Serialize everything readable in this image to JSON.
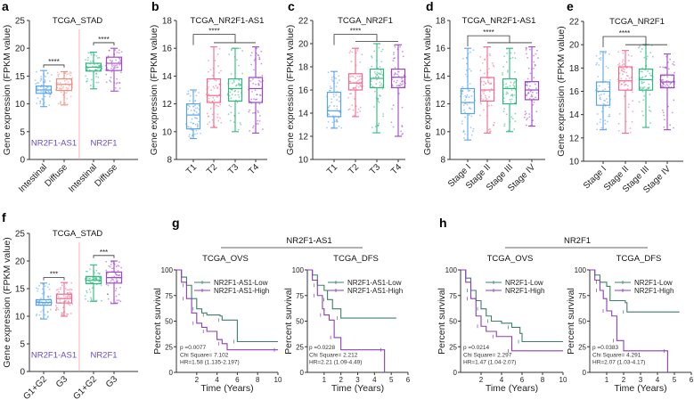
{
  "chart_data": [
    {
      "panel": "a",
      "type": "box",
      "title": "TCGA_STAD",
      "ylabel": "Gene expression (FPKM value)",
      "ylim": [
        0,
        25
      ],
      "yticks": [
        0,
        5,
        10,
        15,
        20,
        25
      ],
      "categories": [
        "Intestinal",
        "Diffuse",
        "Intestinal",
        "Diffuse"
      ],
      "group_labels": [
        "NR2F1-AS1",
        "NR2F1"
      ],
      "colors": [
        "#5aa4ea",
        "#f08c80",
        "#2eb87e",
        "#a048d0"
      ],
      "boxes": [
        {
          "min": 9.5,
          "q1": 11.9,
          "median": 12.5,
          "q3": 13.2,
          "max": 16.0
        },
        {
          "min": 9.8,
          "q1": 12.4,
          "median": 13.5,
          "q3": 14.5,
          "max": 15.8
        },
        {
          "min": 12.7,
          "q1": 15.9,
          "median": 16.6,
          "q3": 17.3,
          "max": 19.3
        },
        {
          "min": 12.3,
          "q1": 16.0,
          "median": 17.3,
          "q3": 18.4,
          "max": 20.0
        }
      ],
      "comparisons": [
        {
          "pair": [
            0,
            1
          ],
          "label": "****",
          "at": 17.0
        },
        {
          "pair": [
            2,
            3
          ],
          "label": "****",
          "at": 21.0
        }
      ]
    },
    {
      "panel": "b",
      "type": "box",
      "title": "TCGA_NR2F1-AS1",
      "ylabel": "Gene expression (FPKM value)",
      "ylim": [
        8,
        18
      ],
      "yticks": [
        8,
        10,
        12,
        14,
        16,
        18
      ],
      "categories": [
        "T1",
        "T2",
        "T3",
        "T4"
      ],
      "colors": [
        "#5aa4ea",
        "#ef6a8c",
        "#2eb87e",
        "#9a44c8"
      ],
      "boxes": [
        {
          "min": 9.5,
          "q1": 10.2,
          "median": 11.2,
          "q3": 12.0,
          "max": 13.0
        },
        {
          "min": 10.3,
          "q1": 12.1,
          "median": 12.6,
          "q3": 13.8,
          "max": 16.1
        },
        {
          "min": 10.0,
          "q1": 12.2,
          "median": 13.1,
          "q3": 13.8,
          "max": 16.0
        },
        {
          "min": 9.9,
          "q1": 12.1,
          "median": 13.1,
          "q3": 13.9,
          "max": 16.1
        }
      ],
      "group_comparison": {
        "label": "****",
        "at": 17.0,
        "sub_at": 16.4
      }
    },
    {
      "panel": "c",
      "type": "box",
      "title": "TCGA_NR2F1",
      "ylabel": "Gene expression (FPKM value)",
      "ylim": [
        10,
        22
      ],
      "yticks": [
        10,
        12,
        14,
        16,
        18,
        20,
        22
      ],
      "categories": [
        "T1",
        "T2",
        "T3",
        "T4"
      ],
      "colors": [
        "#5aa4ea",
        "#ef6a8c",
        "#2eb87e",
        "#9a44c8"
      ],
      "boxes": [
        {
          "min": 12.7,
          "q1": 13.7,
          "median": 14.2,
          "q3": 15.8,
          "max": 17.6
        },
        {
          "min": 13.7,
          "q1": 16.0,
          "median": 16.6,
          "q3": 17.4,
          "max": 19.6
        },
        {
          "min": 12.3,
          "q1": 16.2,
          "median": 17.0,
          "q3": 17.8,
          "max": 20.0
        },
        {
          "min": 12.0,
          "q1": 16.2,
          "median": 17.1,
          "q3": 17.8,
          "max": 19.9
        }
      ],
      "group_comparison": {
        "label": "****",
        "at": 20.8,
        "sub_at": 20.2
      }
    },
    {
      "panel": "d",
      "type": "box",
      "title": "TCGA_NR2F1-AS1",
      "ylabel": "Gene expression (FPKM value)",
      "ylim": [
        8,
        18
      ],
      "yticks": [
        8,
        10,
        12,
        14,
        16,
        18
      ],
      "categories": [
        "Stage I",
        "Stage II",
        "Stage III",
        "Stage IV"
      ],
      "colors": [
        "#5aa4ea",
        "#ef6a8c",
        "#2eb87e",
        "#9a44c8"
      ],
      "boxes": [
        {
          "min": 9.4,
          "q1": 11.3,
          "median": 12.1,
          "q3": 13.1,
          "max": 16.0
        },
        {
          "min": 9.9,
          "q1": 12.2,
          "median": 13.0,
          "q3": 13.9,
          "max": 16.1
        },
        {
          "min": 10.0,
          "q1": 12.0,
          "median": 13.1,
          "q3": 13.8,
          "max": 16.0
        },
        {
          "min": 10.4,
          "q1": 12.3,
          "median": 13.0,
          "q3": 13.6,
          "max": 16.1
        }
      ],
      "group_comparison": {
        "label": "****",
        "at": 16.9,
        "sub_at": 16.4
      }
    },
    {
      "panel": "e",
      "type": "box",
      "title": "TCGA_NR2F1",
      "ylabel": "Gene expression (FPKM value)",
      "ylim": [
        10,
        22
      ],
      "yticks": [
        10,
        12,
        14,
        16,
        18,
        20,
        22
      ],
      "categories": [
        "Stage I",
        "Stage II",
        "Stage III",
        "Stage IV"
      ],
      "colors": [
        "#5aa4ea",
        "#ef6a8c",
        "#2eb87e",
        "#9a44c8"
      ],
      "boxes": [
        {
          "min": 12.7,
          "q1": 14.8,
          "median": 16.0,
          "q3": 16.8,
          "max": 19.4
        },
        {
          "min": 12.4,
          "q1": 16.1,
          "median": 16.9,
          "q3": 18.1,
          "max": 19.5
        },
        {
          "min": 12.9,
          "q1": 16.1,
          "median": 17.0,
          "q3": 17.9,
          "max": 20.0
        },
        {
          "min": 12.7,
          "q1": 16.3,
          "median": 16.8,
          "q3": 17.4,
          "max": 19.2
        }
      ],
      "group_comparison": {
        "label": "****",
        "at": 20.7,
        "sub_at": 20.0
      }
    },
    {
      "panel": "f",
      "type": "box",
      "title": "TCGA_STAD",
      "ylabel": "Gene expression (FPKM value)",
      "ylim": [
        0,
        25
      ],
      "yticks": [
        0,
        5,
        10,
        15,
        20,
        25
      ],
      "categories": [
        "G1+G2",
        "G3",
        "G1+G2",
        "G3"
      ],
      "group_labels": [
        "NR2F1-AS1",
        "NR2F1"
      ],
      "colors": [
        "#5aa4ea",
        "#ef6a8c",
        "#2eb87e",
        "#a048d0"
      ],
      "boxes": [
        {
          "min": 9.5,
          "q1": 12.0,
          "median": 12.5,
          "q3": 13.0,
          "max": 16.0
        },
        {
          "min": 10.0,
          "q1": 12.4,
          "median": 13.2,
          "q3": 14.0,
          "max": 16.1
        },
        {
          "min": 12.7,
          "q1": 15.9,
          "median": 16.5,
          "q3": 17.2,
          "max": 19.3
        },
        {
          "min": 12.3,
          "q1": 16.0,
          "median": 17.0,
          "q3": 18.0,
          "max": 20.0
        }
      ],
      "comparisons": [
        {
          "pair": [
            0,
            1
          ],
          "label": "***",
          "at": 17.0
        },
        {
          "pair": [
            2,
            3
          ],
          "label": "***",
          "at": 21.0
        }
      ]
    },
    {
      "panel": "g",
      "type": "line",
      "group_title": "NR2F1-AS1",
      "subplots": [
        {
          "title": "TCGA_OVS",
          "xlabel": "Time (Years)",
          "ylabel": "Percent survival",
          "xlim": [
            0,
            10
          ],
          "xticks": [
            2,
            4,
            6,
            8,
            10
          ],
          "ylim": [
            0,
            100
          ],
          "yticks": [
            0,
            25,
            50,
            75,
            100
          ],
          "series": [
            {
              "name": "NR2F1-AS1-Low",
              "color": "#3d8066",
              "points": [
                [
                  0,
                  100
                ],
                [
                  0.5,
                  93
                ],
                [
                  1,
                  85
                ],
                [
                  1.5,
                  72
                ],
                [
                  2,
                  62
                ],
                [
                  2.5,
                  58
                ],
                [
                  3,
                  56
                ],
                [
                  4.3,
                  55
                ],
                [
                  4.5,
                  51
                ],
                [
                  5.8,
                  51
                ],
                [
                  6,
                  30
                ],
                [
                  10,
                  30
                ]
              ]
            },
            {
              "name": "NR2F1-AS1-High",
              "color": "#8b3db8",
              "points": [
                [
                  0,
                  100
                ],
                [
                  0.5,
                  88
                ],
                [
                  1,
                  72
                ],
                [
                  1.5,
                  58
                ],
                [
                  2,
                  48
                ],
                [
                  2.5,
                  44
                ],
                [
                  3,
                  40
                ],
                [
                  4,
                  32
                ],
                [
                  4.5,
                  28
                ],
                [
                  5,
                  22
                ],
                [
                  10,
                  22
                ]
              ]
            }
          ],
          "stats": [
            "p =0.0077",
            "Chi Square= 7.102",
            "HR=1.58 (1.135-2.197)"
          ]
        },
        {
          "title": "TCGA_DFS",
          "xlabel": "Time (Years)",
          "ylabel": "Percent survival",
          "xlim": [
            0,
            6
          ],
          "xticks": [
            1,
            2,
            3,
            4,
            5,
            6
          ],
          "ylim": [
            0,
            100
          ],
          "yticks": [
            0,
            25,
            50,
            75,
            100
          ],
          "series": [
            {
              "name": "NR2F1-AS1-Low",
              "color": "#3d8066",
              "points": [
                [
                  0,
                  100
                ],
                [
                  0.3,
                  95
                ],
                [
                  0.6,
                  85
                ],
                [
                  1,
                  80
                ],
                [
                  1.2,
                  71
                ],
                [
                  1.5,
                  62
                ],
                [
                  2,
                  53
                ],
                [
                  5.3,
                  53
                ]
              ]
            },
            {
              "name": "NR2F1-AS1-High",
              "color": "#8b3db8",
              "points": [
                [
                  0,
                  100
                ],
                [
                  0.3,
                  90
                ],
                [
                  0.6,
                  75
                ],
                [
                  0.9,
                  62
                ],
                [
                  1,
                  56
                ],
                [
                  1.3,
                  51
                ],
                [
                  1.6,
                  34
                ],
                [
                  2,
                  22
                ],
                [
                  4.6,
                  22
                ],
                [
                  4.6,
                  0
                ]
              ]
            }
          ],
          "stats": [
            "p =0.0228",
            "Chi Square= 2.212",
            "HR=2.21 (1.09-4.49)"
          ]
        }
      ]
    },
    {
      "panel": "h",
      "type": "line",
      "group_title": "NR2F1",
      "subplots": [
        {
          "title": "TCGA_OVS",
          "xlabel": "Time (Years)",
          "ylabel": "Percent survival",
          "xlim": [
            0,
            10
          ],
          "xticks": [
            2,
            4,
            6,
            8,
            10
          ],
          "ylim": [
            0,
            100
          ],
          "yticks": [
            0,
            25,
            50,
            75,
            100
          ],
          "series": [
            {
              "name": "NR2F1-Low",
              "color": "#3d8066",
              "points": [
                [
                  0,
                  100
                ],
                [
                  0.5,
                  92
                ],
                [
                  1,
                  80
                ],
                [
                  1.5,
                  70
                ],
                [
                  2,
                  62
                ],
                [
                  2.5,
                  55
                ],
                [
                  3,
                  50
                ],
                [
                  4,
                  48
                ],
                [
                  5,
                  44
                ],
                [
                  5.8,
                  38
                ],
                [
                  6,
                  30
                ],
                [
                  10,
                  30
                ]
              ]
            },
            {
              "name": "NR2F1-High",
              "color": "#8b3db8",
              "points": [
                [
                  0,
                  100
                ],
                [
                  0.5,
                  88
                ],
                [
                  1,
                  72
                ],
                [
                  1.5,
                  55
                ],
                [
                  2,
                  45
                ],
                [
                  2.5,
                  40
                ],
                [
                  3.5,
                  35
                ],
                [
                  4.8,
                  35
                ],
                [
                  5,
                  21
                ],
                [
                  10,
                  21
                ]
              ]
            }
          ],
          "stats": [
            "p =0.0214",
            "Chi Square= 2.297",
            "HR=1.47 (1.04-2.07)"
          ]
        },
        {
          "title": "TCGA_DFS",
          "xlabel": "Time (Years)",
          "ylabel": "Percent survival",
          "xlim": [
            0,
            6
          ],
          "xticks": [
            1,
            2,
            3,
            4,
            5,
            6
          ],
          "ylim": [
            0,
            100
          ],
          "yticks": [
            0,
            25,
            50,
            75,
            100
          ],
          "series": [
            {
              "name": "NR2F1-Low",
              "color": "#3d8066",
              "points": [
                [
                  0,
                  100
                ],
                [
                  0.3,
                  95
                ],
                [
                  0.6,
                  88
                ],
                [
                  1,
                  84
                ],
                [
                  1.2,
                  70
                ],
                [
                  2.1,
                  68
                ],
                [
                  2.2,
                  59
                ],
                [
                  5.3,
                  59
                ]
              ]
            },
            {
              "name": "NR2F1-High",
              "color": "#8b3db8",
              "points": [
                [
                  0,
                  100
                ],
                [
                  0.3,
                  90
                ],
                [
                  0.6,
                  80
                ],
                [
                  0.8,
                  72
                ],
                [
                  1,
                  60
                ],
                [
                  1.3,
                  55
                ],
                [
                  1.6,
                  31
                ],
                [
                  2,
                  21
                ],
                [
                  4.6,
                  21
                ],
                [
                  4.6,
                  0
                ]
              ]
            }
          ],
          "stats": [
            "p =0.0383",
            "Chi Square= 4.291",
            "HR=2.07 (1.03-4.17)"
          ]
        }
      ]
    }
  ]
}
